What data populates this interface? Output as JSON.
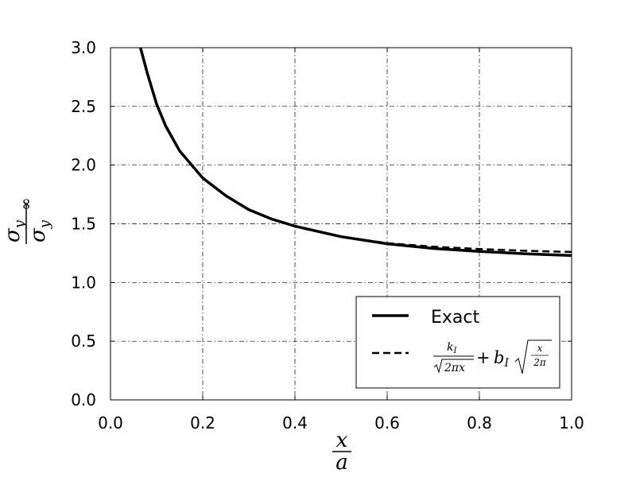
{
  "chart_data": {
    "type": "line",
    "title": "",
    "xlabel": {
      "numerator": "x",
      "denominator": "a"
    },
    "ylabel": {
      "numerator": "σ",
      "numerator_sub": "y",
      "denominator": "σ",
      "denominator_sub": "y",
      "denominator_sup": "∞"
    },
    "xlim": [
      0.0,
      1.0
    ],
    "ylim": [
      0.0,
      3.0
    ],
    "x_ticks": [
      0.0,
      0.2,
      0.4,
      0.6,
      0.8,
      1.0
    ],
    "y_ticks": [
      0.0,
      0.5,
      1.0,
      1.5,
      2.0,
      2.5,
      3.0
    ],
    "x_tick_labels": [
      "0.0",
      "0.2",
      "0.4",
      "0.6",
      "0.8",
      "1.0"
    ],
    "y_tick_labels": [
      "0.0",
      "0.5",
      "1.0",
      "1.5",
      "2.0",
      "2.5",
      "3.0"
    ],
    "grid": true,
    "grid_style": "dash-dot",
    "legend_position": "bottom-right",
    "series": [
      {
        "name": "Exact",
        "style": "solid",
        "color": "#000000",
        "x": [
          0.065,
          0.08,
          0.1,
          0.12,
          0.15,
          0.2,
          0.25,
          0.3,
          0.35,
          0.4,
          0.5,
          0.6,
          0.7,
          0.8,
          0.9,
          1.0
        ],
        "y": [
          3.0,
          2.78,
          2.52,
          2.33,
          2.12,
          1.89,
          1.74,
          1.62,
          1.54,
          1.48,
          1.39,
          1.33,
          1.29,
          1.265,
          1.245,
          1.23
        ]
      },
      {
        "name": "k_I/√(2πx) + b_I√(x/2π)",
        "style": "dashed",
        "color": "#000000",
        "x": [
          0.065,
          0.08,
          0.1,
          0.12,
          0.15,
          0.2,
          0.25,
          0.3,
          0.35,
          0.4,
          0.5,
          0.6,
          0.7,
          0.8,
          0.9,
          1.0
        ],
        "y": [
          3.0,
          2.78,
          2.52,
          2.33,
          2.12,
          1.89,
          1.74,
          1.62,
          1.54,
          1.48,
          1.39,
          1.335,
          1.305,
          1.285,
          1.27,
          1.26
        ]
      }
    ]
  },
  "legend": {
    "exact_label": "Exact",
    "approx": {
      "k": "k",
      "k_sub": "I",
      "sqrt_body": "2πx",
      "plus": "+",
      "b": "b",
      "b_sub": "I",
      "frac_num": "x",
      "frac_den": "2π"
    }
  }
}
